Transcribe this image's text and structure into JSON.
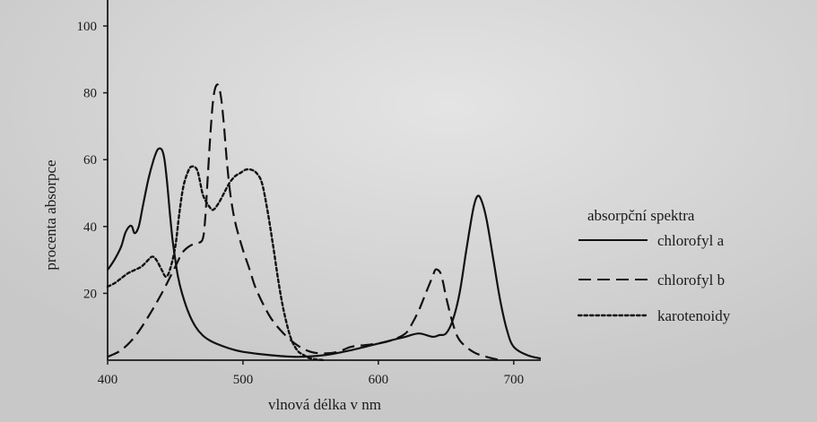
{
  "chart_data": {
    "type": "line",
    "xlabel": "vlnová délka v nm",
    "ylabel": "procenta absorpce",
    "xlim": [
      400,
      720
    ],
    "ylim": [
      0,
      105
    ],
    "x_ticks": [
      400,
      500,
      600,
      700
    ],
    "y_ticks": [
      20,
      40,
      60,
      80,
      100
    ],
    "grid": false,
    "legend": {
      "title": "absorpční spektra",
      "position": "right"
    },
    "series": [
      {
        "name": "chlorofyl a",
        "style": "solid",
        "x": [
          400,
          405,
          410,
          413,
          416,
          418,
          420,
          423,
          426,
          430,
          434,
          437,
          440,
          442,
          444,
          446,
          448,
          450,
          452,
          455,
          460,
          465,
          470,
          475,
          480,
          490,
          500,
          520,
          540,
          560,
          580,
          600,
          610,
          620,
          630,
          640,
          645,
          650,
          655,
          660,
          665,
          670,
          673,
          676,
          680,
          685,
          690,
          695,
          700,
          710,
          720
        ],
        "y": [
          27,
          30,
          34,
          38,
          40,
          40,
          38,
          40,
          46,
          54,
          60,
          63,
          63,
          60,
          53,
          44,
          36,
          30,
          25,
          20,
          14,
          10,
          7.5,
          6,
          5,
          3.5,
          2.5,
          1.5,
          1,
          1.5,
          3,
          5,
          6,
          7,
          8,
          7,
          7.5,
          8,
          12,
          20,
          33,
          45,
          49,
          48,
          42,
          30,
          18,
          9,
          4,
          1.5,
          0.5
        ]
      },
      {
        "name": "chlorofyl b",
        "style": "dashed",
        "x": [
          400,
          410,
          420,
          430,
          440,
          450,
          455,
          460,
          465,
          470,
          472,
          474,
          476,
          478,
          480,
          482,
          484,
          486,
          488,
          490,
          492,
          495,
          500,
          505,
          510,
          520,
          530,
          540,
          550,
          560,
          570,
          580,
          590,
          600,
          610,
          620,
          625,
          630,
          635,
          640,
          642,
          644,
          646,
          648,
          650,
          655,
          660,
          670,
          680,
          690
        ],
        "y": [
          1,
          3,
          7,
          13,
          20,
          28,
          32,
          34,
          35,
          36,
          42,
          55,
          68,
          78,
          82,
          82,
          78,
          70,
          60,
          52,
          46,
          40,
          33,
          27,
          21,
          13,
          8,
          4.5,
          2.5,
          2,
          2.5,
          4,
          4.5,
          5,
          6,
          8,
          11,
          15,
          20,
          25,
          27,
          27,
          26,
          23,
          19,
          11,
          6,
          2.5,
          1,
          0
        ]
      },
      {
        "name": "karotenoidy",
        "style": "dotted",
        "x": [
          400,
          405,
          410,
          415,
          420,
          425,
          430,
          433,
          436,
          440,
          443,
          446,
          450,
          453,
          456,
          460,
          463,
          466,
          468,
          470,
          472,
          475,
          478,
          482,
          486,
          490,
          494,
          498,
          502,
          506,
          510,
          514,
          518,
          522,
          526,
          530,
          535,
          540,
          545,
          550,
          560
        ],
        "y": [
          22,
          23,
          24.5,
          26,
          27,
          28,
          30,
          31,
          30,
          27,
          25,
          27,
          34,
          44,
          52,
          57,
          58,
          57,
          54,
          50,
          48,
          46,
          45,
          47,
          50,
          53,
          55,
          56,
          57,
          57,
          56,
          53,
          45,
          35,
          24,
          15,
          7,
          3,
          1.5,
          0.5,
          0
        ]
      }
    ]
  }
}
